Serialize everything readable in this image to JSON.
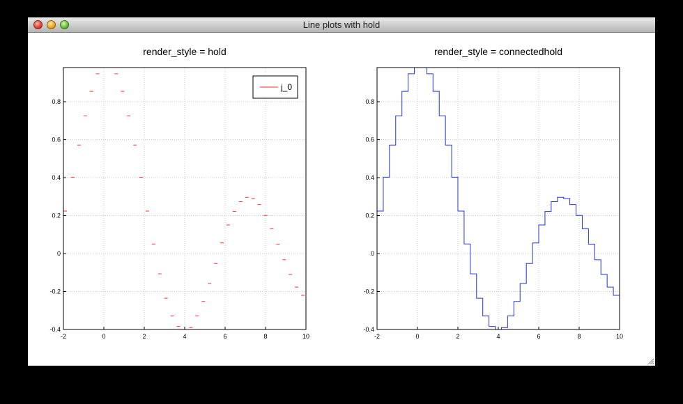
{
  "window": {
    "title": "Line plots with hold"
  },
  "colors": {
    "left_series": "#ff2a2a",
    "right_series": "#2233dd",
    "grid": "#c8c8c8"
  },
  "chart_data": [
    {
      "type": "line",
      "title": "render_style = hold",
      "render_style": "hold",
      "xlim": [
        -2,
        10
      ],
      "ylim": [
        -0.4,
        0.98
      ],
      "xticks": [
        -2,
        0,
        2,
        4,
        6,
        8,
        10
      ],
      "yticks": [
        -0.4,
        -0.2,
        0,
        0.2,
        0.4,
        0.6,
        0.8
      ],
      "xtick_labels": [
        "-2",
        "0",
        "2",
        "4",
        "6",
        "8",
        "10"
      ],
      "ytick_labels": [
        "-0.4",
        "-0.2",
        "0",
        "0.2",
        "0.4",
        "0.6",
        "0.8"
      ],
      "grid": true,
      "legend": {
        "position": "top-right",
        "entries": [
          "j_0"
        ]
      },
      "series": [
        {
          "name": "j_0",
          "color": "#ff2a2a",
          "x": [
            -2.0,
            -1.6923,
            -1.3846,
            -1.0769,
            -0.7692,
            -0.4615,
            -0.1538,
            0.1538,
            0.4615,
            0.7692,
            1.0769,
            1.3846,
            1.6923,
            2.0,
            2.3077,
            2.6154,
            2.9231,
            3.2308,
            3.5385,
            3.8462,
            4.1538,
            4.4615,
            4.7692,
            5.0769,
            5.3846,
            5.6923,
            6.0,
            6.3077,
            6.6154,
            6.9231,
            7.2308,
            7.5385,
            7.8462,
            8.1538,
            8.4615,
            8.7692,
            9.0769,
            9.3846,
            9.6923,
            10.0
          ],
          "y": [
            0.2239,
            0.4023,
            0.5718,
            0.7257,
            0.8548,
            0.9474,
            0.9941,
            0.9941,
            0.9474,
            0.8548,
            0.7257,
            0.5718,
            0.4023,
            0.2239,
            0.0503,
            -0.1067,
            -0.2354,
            -0.329,
            -0.3838,
            -0.3998,
            -0.3898,
            -0.329,
            -0.2522,
            -0.1583,
            -0.0523,
            0.0561,
            0.1506,
            0.2218,
            0.2733,
            0.2962,
            0.2899,
            0.2585,
            0.201,
            0.1307,
            0.0495,
            -0.0324,
            -0.1101,
            -0.1767,
            -0.2202,
            -0.2459
          ]
        }
      ]
    },
    {
      "type": "line",
      "title": "render_style = connectedhold",
      "render_style": "connectedhold",
      "xlim": [
        -2,
        10
      ],
      "ylim": [
        -0.4,
        0.98
      ],
      "xticks": [
        -2,
        0,
        2,
        4,
        6,
        8,
        10
      ],
      "yticks": [
        -0.4,
        -0.2,
        0,
        0.2,
        0.4,
        0.6,
        0.8
      ],
      "xtick_labels": [
        "-2",
        "0",
        "2",
        "4",
        "6",
        "8",
        "10"
      ],
      "ytick_labels": [
        "-0.4",
        "-0.2",
        "0",
        "0.2",
        "0.4",
        "0.6",
        "0.8"
      ],
      "grid": true,
      "series": [
        {
          "color": "#2233dd",
          "x": [
            -2.0,
            -1.6923,
            -1.3846,
            -1.0769,
            -0.7692,
            -0.4615,
            -0.1538,
            0.1538,
            0.4615,
            0.7692,
            1.0769,
            1.3846,
            1.6923,
            2.0,
            2.3077,
            2.6154,
            2.9231,
            3.2308,
            3.5385,
            3.8462,
            4.1538,
            4.4615,
            4.7692,
            5.0769,
            5.3846,
            5.6923,
            6.0,
            6.3077,
            6.6154,
            6.9231,
            7.2308,
            7.5385,
            7.8462,
            8.1538,
            8.4615,
            8.7692,
            9.0769,
            9.3846,
            9.6923,
            10.0
          ],
          "y": [
            0.2239,
            0.4023,
            0.5718,
            0.7257,
            0.8548,
            0.9474,
            0.9941,
            0.9941,
            0.9474,
            0.8548,
            0.7257,
            0.5718,
            0.4023,
            0.2239,
            0.0503,
            -0.1067,
            -0.2354,
            -0.329,
            -0.3838,
            -0.3998,
            -0.3898,
            -0.329,
            -0.2522,
            -0.1583,
            -0.0523,
            0.0561,
            0.1506,
            0.2218,
            0.2733,
            0.2962,
            0.2899,
            0.2585,
            0.201,
            0.1307,
            0.0495,
            -0.0324,
            -0.1101,
            -0.1767,
            -0.2202,
            -0.2459
          ]
        }
      ]
    }
  ]
}
